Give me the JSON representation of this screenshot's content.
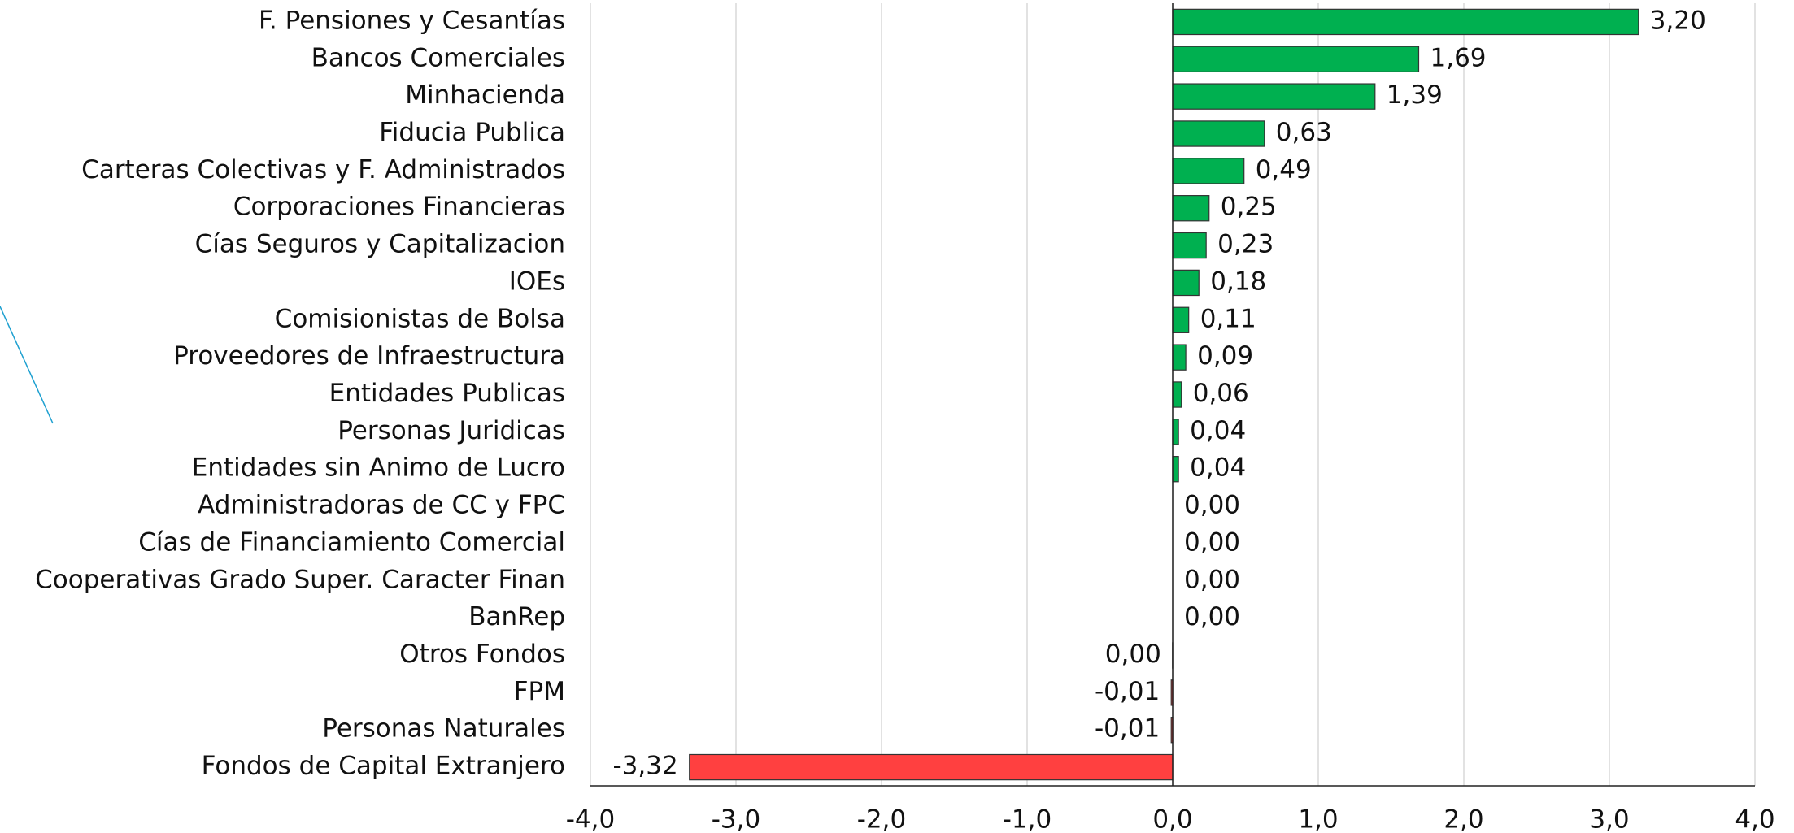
{
  "chart_data": {
    "type": "hbar",
    "categories": [
      "F. Pensiones y Cesantías",
      "Bancos Comerciales",
      "Minhacienda",
      "Fiducia Publica",
      "Carteras Colectivas y F. Administrados",
      "Corporaciones Financieras",
      "Cías Seguros y Capitalizacion",
      "IOEs",
      "Comisionistas de Bolsa",
      "Proveedores de Infraestructura",
      "Entidades Publicas",
      "Personas Juridicas",
      "Entidades sin Animo de Lucro",
      "Administradoras de CC y FPC",
      "Cías de Financiamiento Comercial",
      "Cooperativas Grado Super. Caracter Finan",
      "BanRep",
      "Otros Fondos",
      "FPM",
      "Personas Naturales",
      "Fondos de Capital Extranjero"
    ],
    "values": [
      3.2,
      1.69,
      1.39,
      0.63,
      0.49,
      0.25,
      0.23,
      0.18,
      0.11,
      0.09,
      0.06,
      0.04,
      0.04,
      0.0,
      0.0,
      0.0,
      0.0,
      -0.001,
      -0.01,
      -0.01,
      -3.32
    ],
    "value_labels": [
      "3,20",
      "1,69",
      "1,39",
      "0,63",
      "0,49",
      "0,25",
      "0,23",
      "0,18",
      "0,11",
      "0,09",
      "0,06",
      "0,04",
      "0,04",
      "0,00",
      "0,00",
      "0,00",
      "0,00",
      "0,00",
      "-0,01",
      "-0,01",
      "-3,32"
    ],
    "positive_color": "#00b050",
    "negative_color": "#ff4040",
    "xlim": [
      -4,
      4
    ],
    "xticks": [
      {
        "value": -4,
        "label": "-4,0"
      },
      {
        "value": -3,
        "label": "-3,0"
      },
      {
        "value": -2,
        "label": "-2,0"
      },
      {
        "value": -1,
        "label": "-1,0"
      },
      {
        "value": 0,
        "label": "0,0"
      },
      {
        "value": 1,
        "label": "1,0"
      },
      {
        "value": 2,
        "label": "2,0"
      },
      {
        "value": 3,
        "label": "3,0"
      },
      {
        "value": 4,
        "label": "4,0"
      }
    ],
    "grid": true
  }
}
